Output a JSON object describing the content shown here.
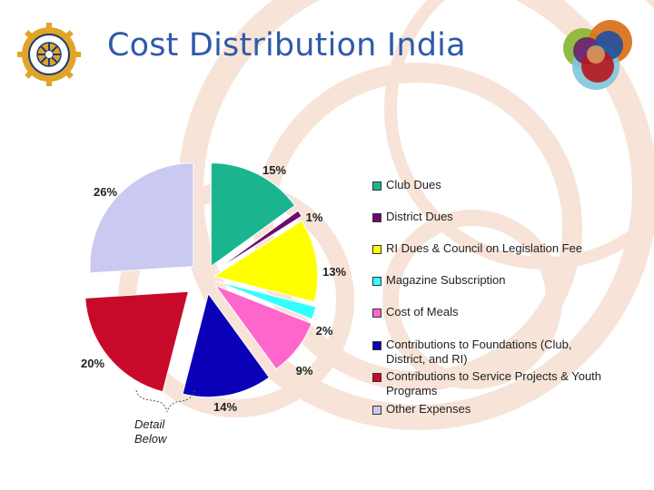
{
  "title": "Cost Distribution India",
  "detail_note": [
    "Detail",
    "Below"
  ],
  "colors": {
    "background_arcs": "#f7e1d3",
    "title": "#2e5aa8",
    "rotary_gold": "#e0a526",
    "rotary_blue": "#1f3a7a"
  },
  "legend": [
    {
      "label": "Club Dues",
      "color": "#1ab58f"
    },
    {
      "label": "District Dues",
      "color": "#6b0b6e"
    },
    {
      "label": "RI Dues & Council on Legislation Fee",
      "color": "#ffff00"
    },
    {
      "label": "Magazine Subscription",
      "color": "#33ffff"
    },
    {
      "label": "Cost of Meals",
      "color": "#ff66cc"
    },
    {
      "label": "Contributions to Foundations (Club, District, and RI)",
      "color": "#0a00b8"
    },
    {
      "label": "Contributions to Service Projects & Youth Programs",
      "color": "#c80a2a"
    },
    {
      "label": "Other Expenses",
      "color": "#c9c9f2"
    }
  ],
  "chart_data": {
    "type": "pie",
    "title": "Cost Distribution India",
    "categories": [
      "Club Dues",
      "District Dues",
      "RI Dues & Council on Legislation Fee",
      "Magazine Subscription",
      "Cost of Meals",
      "Contributions to Foundations (Club, District, and RI)",
      "Contributions to Service Projects & Youth Programs",
      "Other Expenses"
    ],
    "values": [
      15,
      1,
      13,
      2,
      9,
      14,
      20,
      26
    ],
    "labels": [
      "15%",
      "1%",
      "13%",
      "2%",
      "9%",
      "14%",
      "20%",
      "26%"
    ],
    "legend_position": "right"
  }
}
